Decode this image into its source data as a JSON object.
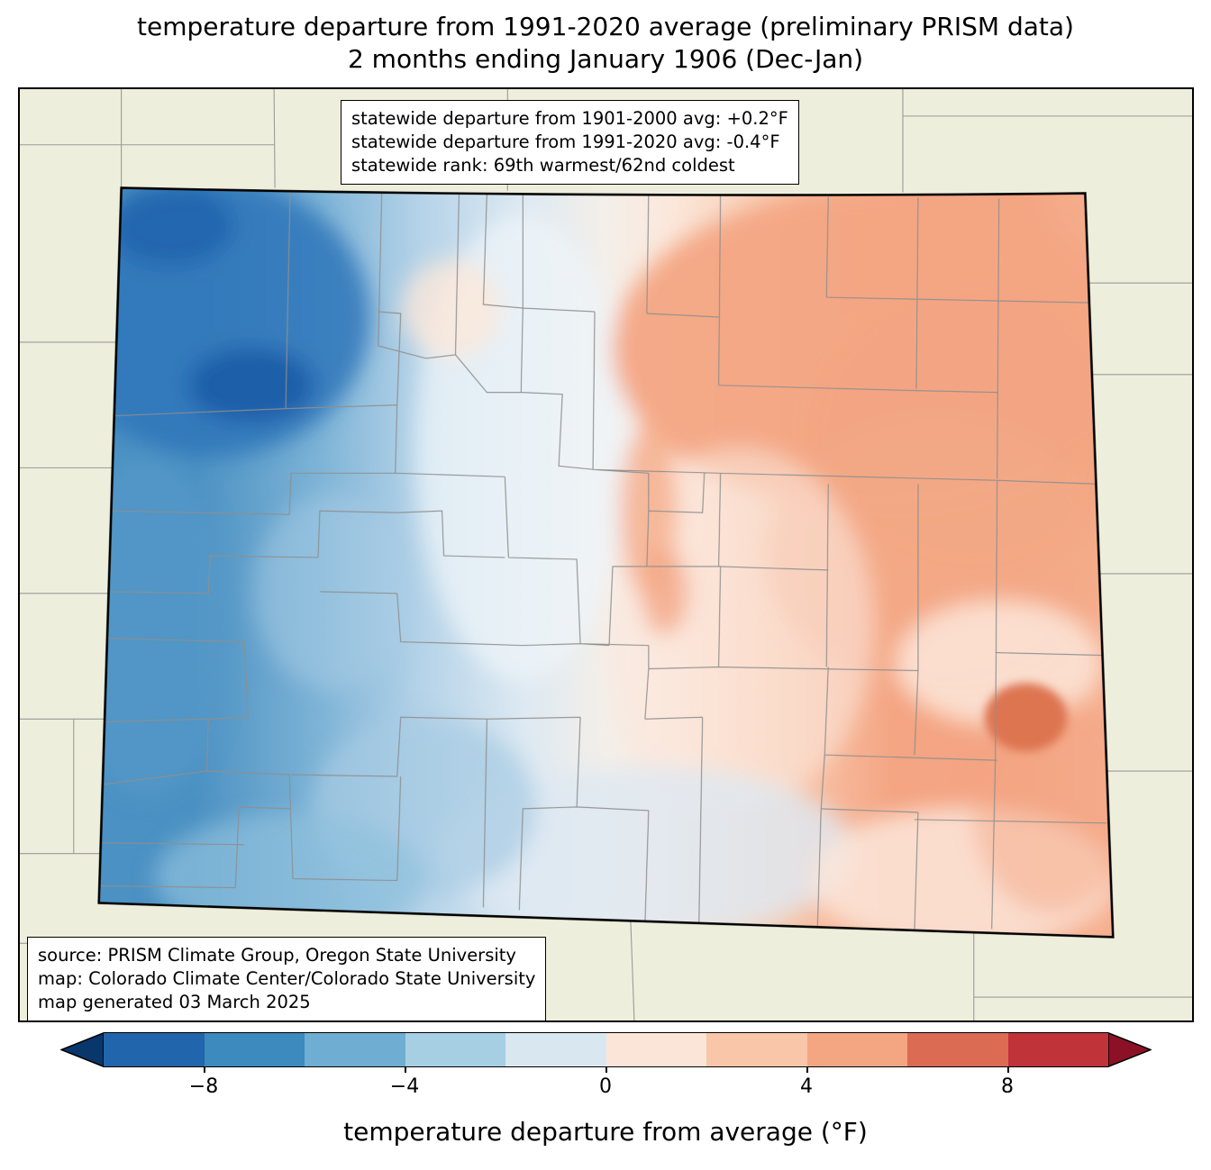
{
  "title": {
    "line1": "temperature departure from 1991-2020 average (preliminary PRISM data)",
    "line2": "2 months ending January 1906 (Dec-Jan)"
  },
  "stats_box": {
    "line1": "statewide departure from 1901-2000 avg: +0.2°F",
    "line2": "statewide departure from 1991-2020 avg: -0.4°F",
    "line3": "statewide rank: 69th warmest/62nd coldest"
  },
  "source_box": {
    "line1": "source: PRISM Climate Group, Oregon State University",
    "line2": "map: Colorado Climate Center/Colorado State University",
    "line3": "map generated 03 March 2025"
  },
  "colorbar": {
    "label": "temperature departure from average (°F)",
    "ticks": [
      "−8",
      "−4",
      "0",
      "4",
      "8"
    ],
    "tick_values": [
      -8,
      -4,
      0,
      4,
      8
    ],
    "range_min": -10,
    "range_max": 10,
    "segment_step": 2,
    "segment_colors": [
      "#2166ac",
      "#3c8abe",
      "#6faed2",
      "#a7cfe4",
      "#d9e7f1",
      "#fbe5d8",
      "#f9c6a9",
      "#f4a582",
      "#dc6b54",
      "#c03338"
    ],
    "left_arrow_color": "#09376b",
    "right_arrow_color": "#8c1127"
  },
  "map": {
    "region_label": "Colorado",
    "type": "choropleth",
    "cold_region_color": "#4b91c3",
    "coldest_patch_color": "#1a5ca6",
    "warm_region_color": "#f4a583",
    "warmest_patch_color": "#dd7551",
    "background_land_color": "#eeeedd",
    "county_line_color": "#8f8f8f",
    "state_border_color": "#000000"
  }
}
